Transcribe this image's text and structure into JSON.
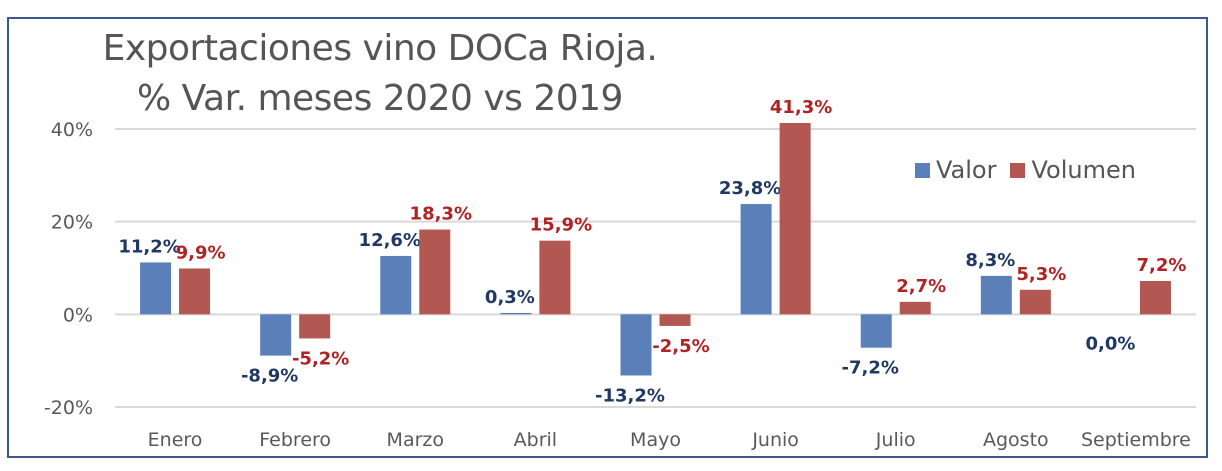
{
  "chart_data": {
    "type": "bar",
    "title": "Exportaciones vino DOCa Rioja.",
    "subtitle": "% Var. meses 2020 vs 2019",
    "xlabel": "",
    "ylabel": "",
    "categories": [
      "Enero",
      "Febrero",
      "Marzo",
      "Abril",
      "Mayo",
      "Junio",
      "Julio",
      "Agosto",
      "Septiembre"
    ],
    "series": [
      {
        "name": "Valor",
        "color": "#5b7fb9",
        "label_color": "#1f3864",
        "values": [
          11.2,
          -8.9,
          12.6,
          0.3,
          -13.2,
          23.8,
          -7.2,
          8.3,
          0.0
        ],
        "labels": [
          "11,2%",
          "-8,9%",
          "12,6%",
          "0,3%",
          "-13,2%",
          "23,8%",
          "-7,2%",
          "8,3%",
          "0,0%"
        ]
      },
      {
        "name": "Volumen",
        "color": "#b25752",
        "label_color": "#b02323",
        "values": [
          9.9,
          -5.2,
          18.3,
          15.9,
          -2.5,
          41.3,
          2.7,
          5.3,
          7.2
        ],
        "labels": [
          "9,9%",
          "-5,2%",
          "18,3%",
          "15,9%",
          "-2,5%",
          "41,3%",
          "2,7%",
          "5,3%",
          "7,2%"
        ]
      }
    ],
    "yticks": [
      40,
      20,
      0,
      -20
    ],
    "ytick_labels": [
      "40%",
      "20%",
      "0%",
      "-20%"
    ],
    "ylim": [
      -20,
      40
    ],
    "grid": true,
    "legend": {
      "position": "top-right",
      "entries": [
        "Valor",
        "Volumen"
      ]
    }
  }
}
